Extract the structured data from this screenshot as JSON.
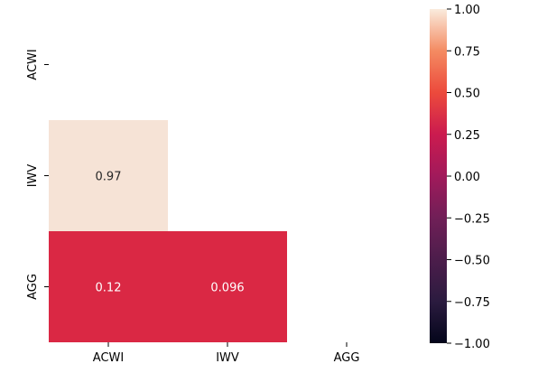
{
  "chart_data": {
    "type": "heatmap",
    "title": "",
    "xlabel": "",
    "ylabel": "",
    "x_labels": [
      "ACWI",
      "IWV",
      "AGG"
    ],
    "y_labels": [
      "ACWI",
      "IWV",
      "AGG"
    ],
    "mask": "upper-triangle-including-diagonal",
    "cells": [
      {
        "row": 1,
        "col": 0,
        "value": 0.97,
        "label": "0.97"
      },
      {
        "row": 2,
        "col": 0,
        "value": 0.12,
        "label": "0.12"
      },
      {
        "row": 2,
        "col": 1,
        "value": 0.096,
        "label": "0.096"
      }
    ],
    "colorbar": {
      "vmin": -1.0,
      "vmax": 1.0,
      "colormap": "rocket",
      "tick_values": [
        1.0,
        0.75,
        0.5,
        0.25,
        0.0,
        -0.25,
        -0.5,
        -0.75,
        -1.0
      ],
      "tick_labels": [
        "1.00",
        "0.75",
        "0.50",
        "0.25",
        "0.00",
        "−0.25",
        "−0.50",
        "−0.75",
        "−1.00"
      ]
    },
    "colors": {
      "cell_0.97": "#f6e3d6",
      "cell_0.12": "#da2844",
      "cell_0.096": "#da2844"
    }
  }
}
